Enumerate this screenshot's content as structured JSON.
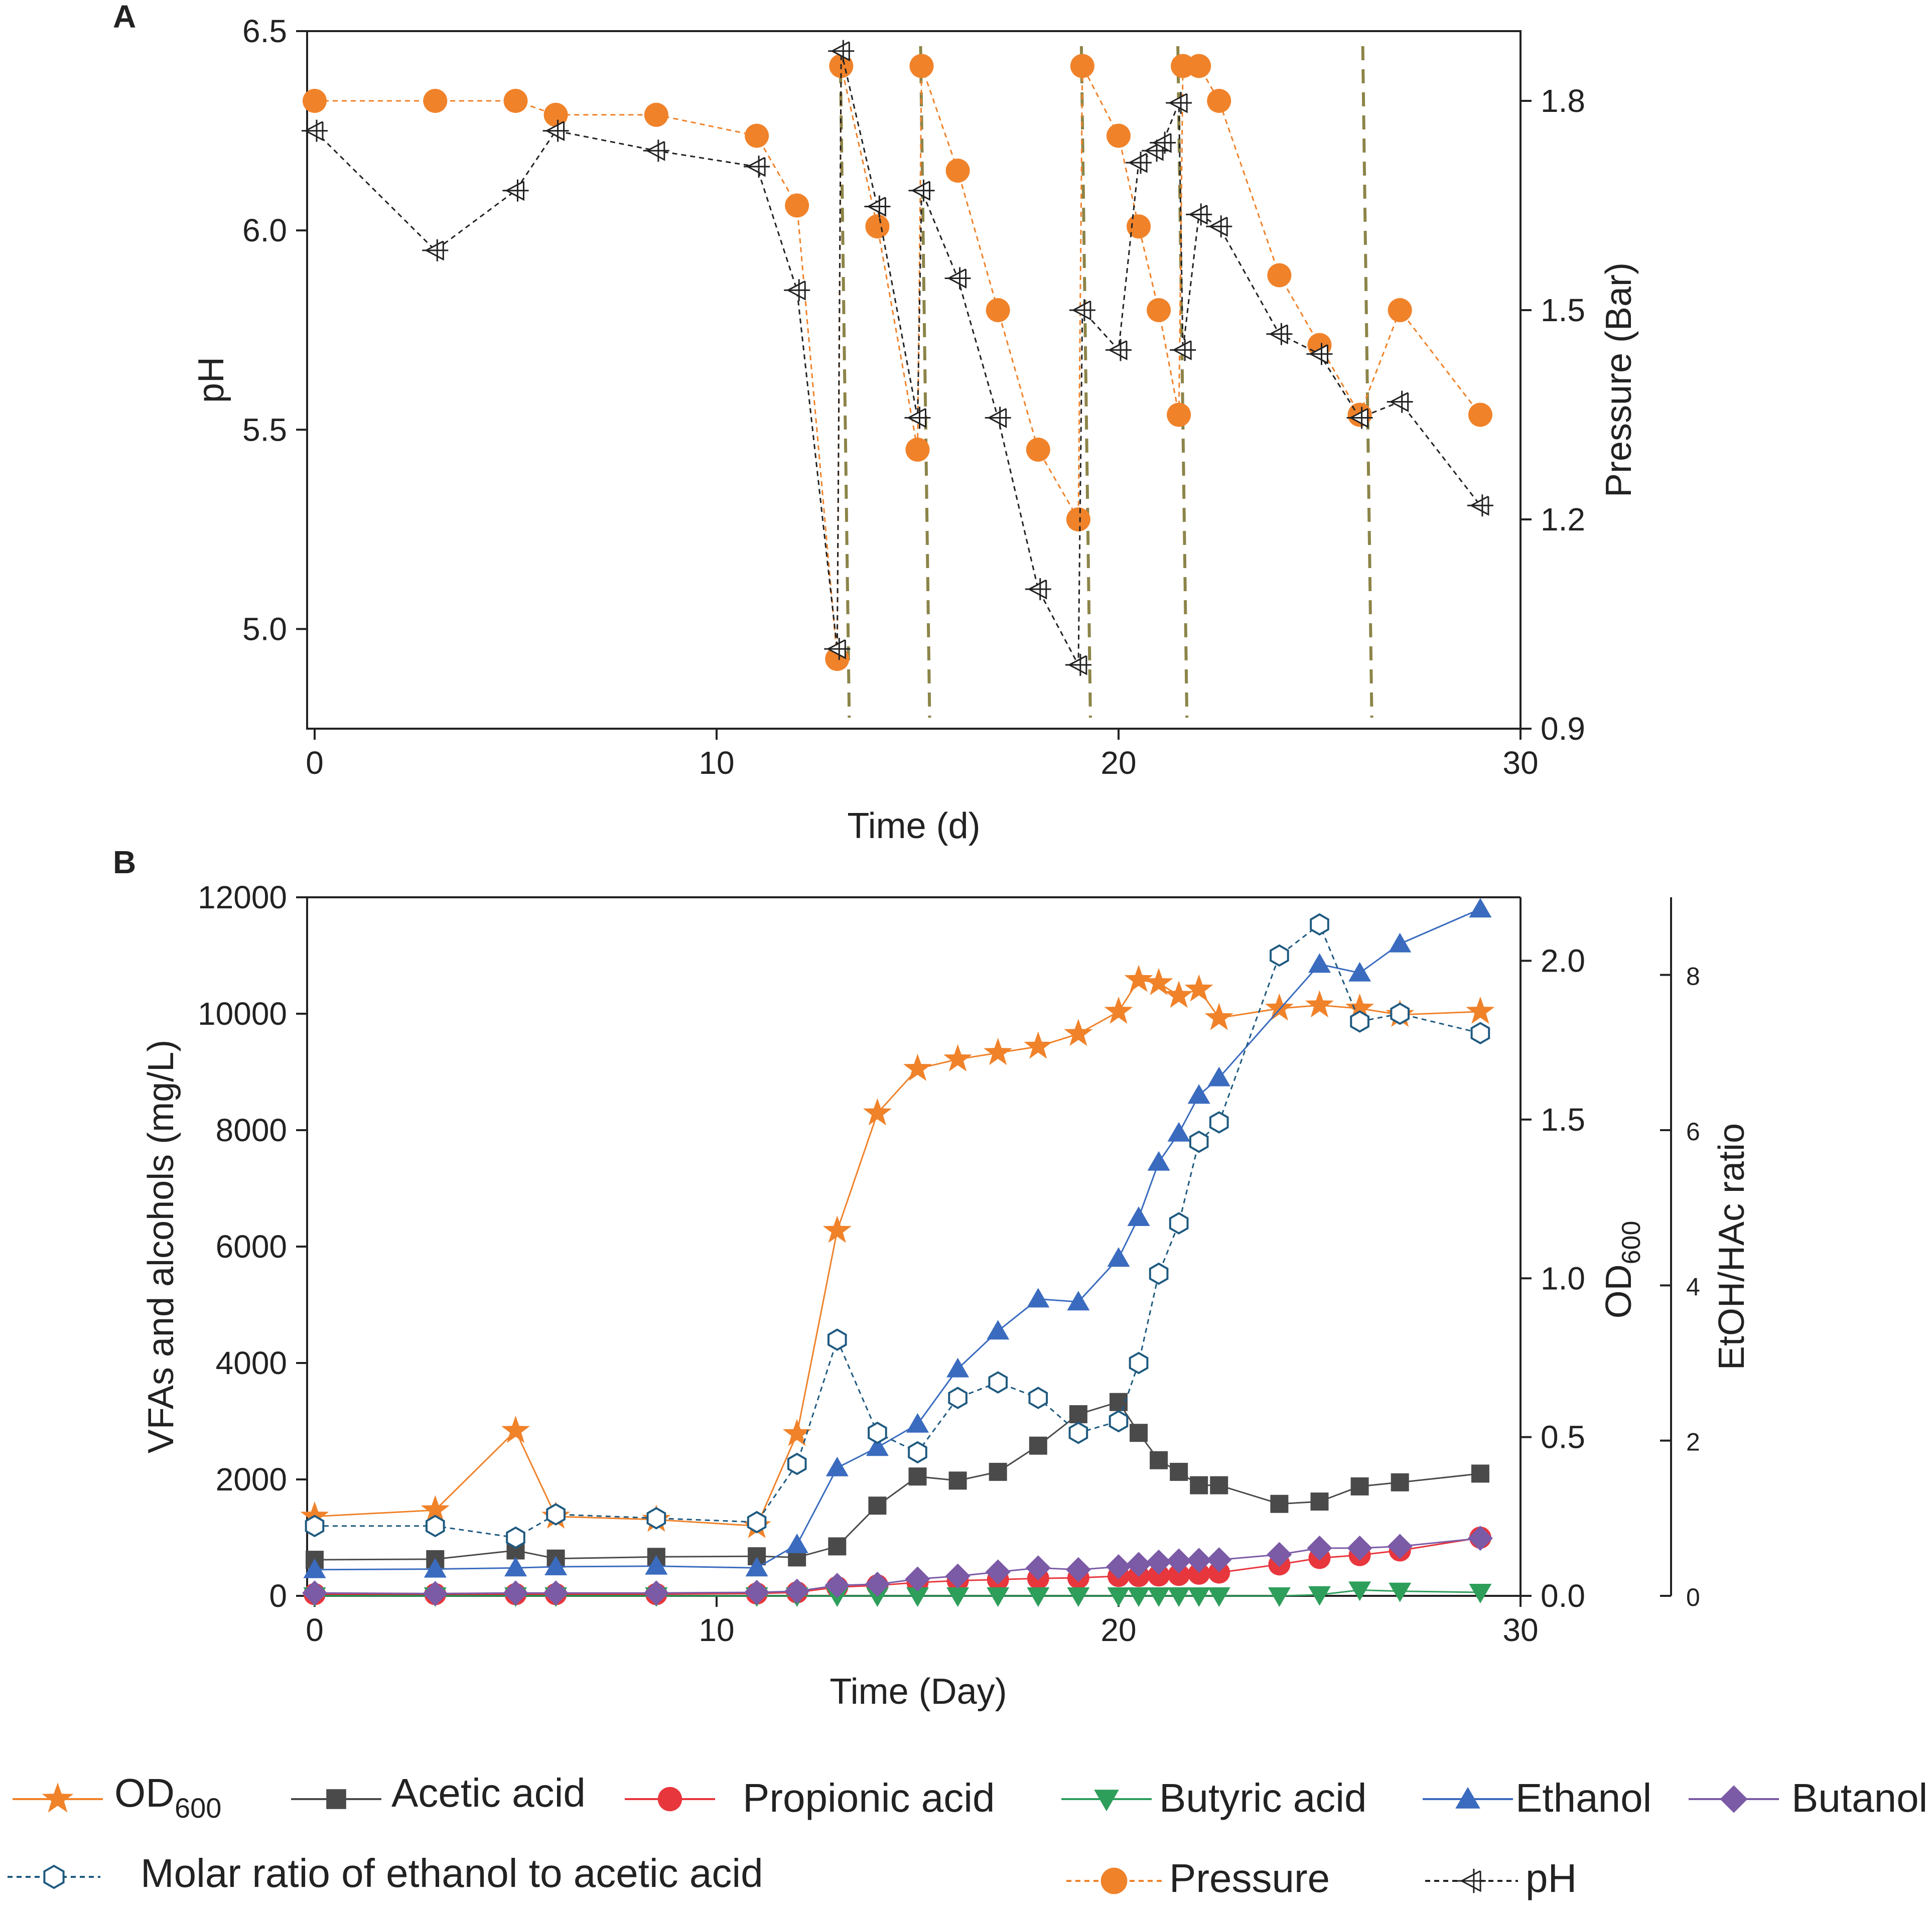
{
  "chart_data": [
    {
      "panel": "A",
      "type": "line",
      "xlabel": "Time (d)",
      "ylabel": "pH",
      "y2label": "Pressure (Bar)",
      "xlim": [
        0,
        30
      ],
      "ylim": [
        4.75,
        6.5
      ],
      "y2lim": [
        0.9,
        1.9
      ],
      "xticks": [
        "0",
        "10",
        "20",
        "30"
      ],
      "yticks": [
        "5.0",
        "5.5",
        "6.0",
        "6.5"
      ],
      "y2ticks": [
        "0.9",
        "1.2",
        "1.5",
        "1.8"
      ],
      "release_days": [
        13.3,
        15.3,
        19.3,
        21.7,
        26.3
      ],
      "series": [
        {
          "name": "Pressure",
          "axis": "y2",
          "color": "#f0822a",
          "x": [
            0,
            3,
            5,
            6,
            8.5,
            11,
            12,
            13,
            13.1,
            14,
            15,
            15.1,
            16,
            17,
            18,
            19,
            19.1,
            20,
            20.5,
            21,
            21.5,
            21.6,
            22,
            22.5,
            24,
            25,
            26,
            27,
            29
          ],
          "y": [
            1.8,
            1.8,
            1.8,
            1.78,
            1.78,
            1.75,
            1.65,
            1.0,
            1.85,
            1.62,
            1.3,
            1.85,
            1.7,
            1.5,
            1.3,
            1.2,
            1.85,
            1.75,
            1.62,
            1.5,
            1.35,
            1.85,
            1.85,
            1.8,
            1.55,
            1.45,
            1.35,
            1.5,
            1.35
          ]
        },
        {
          "name": "pH",
          "axis": "y",
          "color": "#222222",
          "x": [
            0,
            3,
            5,
            6,
            8.5,
            11,
            12,
            13,
            13.1,
            14,
            15,
            15.1,
            16,
            17,
            18,
            19,
            19.1,
            20,
            20.5,
            20.9,
            21.1,
            21.5,
            21.6,
            22,
            22.5,
            24,
            25,
            26,
            27,
            29
          ],
          "y": [
            6.25,
            5.95,
            6.1,
            6.25,
            6.2,
            6.16,
            5.85,
            4.95,
            6.45,
            6.06,
            5.53,
            6.1,
            5.88,
            5.53,
            5.1,
            4.91,
            5.8,
            5.7,
            6.17,
            6.2,
            6.22,
            6.32,
            5.7,
            6.04,
            6.01,
            5.74,
            5.69,
            5.53,
            5.57,
            5.31
          ]
        }
      ]
    },
    {
      "panel": "B",
      "type": "line",
      "xlabel": "Time (Day)",
      "ylabel": "VFAs and alcohols (mg/L)",
      "y2label": "OD600",
      "y3label": "EtOH/HAc ratio",
      "xlim": [
        0,
        30
      ],
      "ylim": [
        0,
        12000
      ],
      "y2lim": [
        0,
        2.2
      ],
      "y3lim": [
        0,
        9
      ],
      "xticks": [
        "0",
        "10",
        "20",
        "30"
      ],
      "yticks": [
        "0",
        "2000",
        "4000",
        "6000",
        "8000",
        "10000",
        "12000"
      ],
      "y2ticks": [
        "0.0",
        "0.5",
        "1.0",
        "1.5",
        "2.0"
      ],
      "y3ticks": [
        "0",
        "2",
        "4",
        "6",
        "8"
      ],
      "series": [
        {
          "name": "OD600",
          "axis": "y2",
          "color": "#f0822a",
          "marker": "star",
          "x": [
            0,
            3,
            5,
            6,
            8.5,
            11,
            12,
            13,
            14,
            15,
            16,
            17,
            18,
            19,
            20,
            20.5,
            21,
            21.5,
            22,
            22.5,
            24,
            25,
            26,
            27,
            29
          ],
          "y": [
            0.25,
            0.27,
            0.52,
            0.25,
            0.24,
            0.22,
            0.51,
            1.15,
            1.52,
            1.66,
            1.69,
            1.71,
            1.73,
            1.77,
            1.84,
            1.94,
            1.93,
            1.89,
            1.91,
            1.82,
            1.85,
            1.86,
            1.85,
            1.83,
            1.84
          ]
        },
        {
          "name": "Acetic acid",
          "axis": "y",
          "color": "#4a4a4a",
          "marker": "square",
          "x": [
            0,
            3,
            5,
            6,
            8.5,
            11,
            12,
            13,
            14,
            15,
            16,
            17,
            18,
            19,
            20,
            20.5,
            21,
            21.5,
            22,
            22.5,
            24,
            25,
            26,
            27,
            29
          ],
          "y": [
            620,
            630,
            780,
            640,
            670,
            680,
            660,
            850,
            1550,
            2050,
            1980,
            2130,
            2580,
            3120,
            3330,
            2800,
            2330,
            2130,
            1900,
            1900,
            1580,
            1620,
            1880,
            1950,
            2100
          ]
        },
        {
          "name": "Propionic acid",
          "axis": "y",
          "color": "#e8363d",
          "marker": "circle",
          "x": [
            0,
            3,
            5,
            6,
            8.5,
            11,
            12,
            13,
            14,
            15,
            16,
            17,
            18,
            19,
            20,
            20.5,
            21,
            21.5,
            22,
            22.5,
            24,
            25,
            26,
            27,
            29
          ],
          "y": [
            30,
            30,
            30,
            30,
            30,
            40,
            60,
            150,
            180,
            230,
            260,
            280,
            300,
            310,
            340,
            340,
            350,
            360,
            380,
            400,
            540,
            650,
            700,
            780,
            1000
          ]
        },
        {
          "name": "Butyric acid",
          "axis": "y",
          "color": "#2e9e5b",
          "marker": "tri-down",
          "x": [
            0,
            3,
            5,
            6,
            8.5,
            11,
            12,
            13,
            14,
            15,
            16,
            17,
            18,
            19,
            20,
            20.5,
            21,
            21.5,
            22,
            22.5,
            24,
            25,
            26,
            27,
            29
          ],
          "y": [
            0,
            0,
            0,
            0,
            0,
            0,
            0,
            0,
            0,
            0,
            0,
            0,
            0,
            0,
            0,
            0,
            0,
            0,
            0,
            0,
            0,
            20,
            100,
            80,
            60
          ]
        },
        {
          "name": "Ethanol",
          "axis": "y",
          "color": "#3a6bbf",
          "marker": "tri-up",
          "x": [
            0,
            3,
            5,
            6,
            8.5,
            11,
            12,
            13,
            14,
            15,
            16,
            17,
            18,
            19,
            20,
            20.5,
            21,
            21.5,
            22,
            22.5,
            25,
            26,
            27,
            29
          ],
          "y": [
            450,
            460,
            480,
            500,
            510,
            480,
            880,
            2200,
            2550,
            2950,
            3900,
            4550,
            5100,
            5050,
            5800,
            6500,
            7450,
            7950,
            8600,
            8900,
            10850,
            10700,
            11200,
            11800
          ]
        },
        {
          "name": "Butanol",
          "axis": "y",
          "color": "#7b5aa6",
          "marker": "diamond",
          "x": [
            0,
            3,
            5,
            6,
            8.5,
            11,
            12,
            13,
            14,
            15,
            16,
            17,
            18,
            19,
            20,
            20.5,
            21,
            21.5,
            22,
            22.5,
            24,
            25,
            26,
            27,
            29
          ],
          "y": [
            50,
            40,
            50,
            50,
            50,
            60,
            80,
            180,
            200,
            290,
            340,
            410,
            480,
            450,
            500,
            540,
            580,
            600,
            610,
            620,
            710,
            820,
            820,
            850,
            990
          ]
        },
        {
          "name": "Molar ratio of ethanol to acetic acid",
          "axis": "y3",
          "color": "#1f5a80",
          "marker": "hexagon",
          "x": [
            0,
            3,
            5,
            6,
            8.5,
            11,
            12,
            13,
            14,
            15,
            16,
            17,
            18,
            19,
            20,
            20.5,
            21,
            21.5,
            22,
            22.5,
            24,
            25,
            26,
            27,
            29
          ],
          "y": [
            0.9,
            0.9,
            0.75,
            1.05,
            1.0,
            0.95,
            1.7,
            3.3,
            2.1,
            1.85,
            2.55,
            2.75,
            2.55,
            2.1,
            2.25,
            3.0,
            4.15,
            4.8,
            5.85,
            6.1,
            8.25,
            8.65,
            7.4,
            7.5,
            7.25
          ]
        }
      ]
    }
  ],
  "panel_labels": {
    "a": "A",
    "b": "B"
  },
  "axis_titles": {
    "a_x": "Time (d)",
    "a_y": "pH",
    "a_y2": "Pressure (Bar)",
    "b_x": "Time (Day)",
    "b_y": "VFAs and alcohols (mg/L)",
    "b_y2_main": "OD",
    "b_y2_sub": "600",
    "b_y3": "EtOH/HAc ratio"
  },
  "legend": {
    "od_main": "OD",
    "od_sub": "600",
    "acetic": "Acetic acid",
    "propionic": "Propionic acid",
    "butyric": "Butyric acid",
    "ethanol": "Ethanol",
    "butanol": "Butanol",
    "molar": "Molar ratio of ethanol to acetic acid",
    "pressure": "Pressure",
    "ph": "pH"
  },
  "colors": {
    "release_line": "#8c8448",
    "axis": "#222222"
  }
}
